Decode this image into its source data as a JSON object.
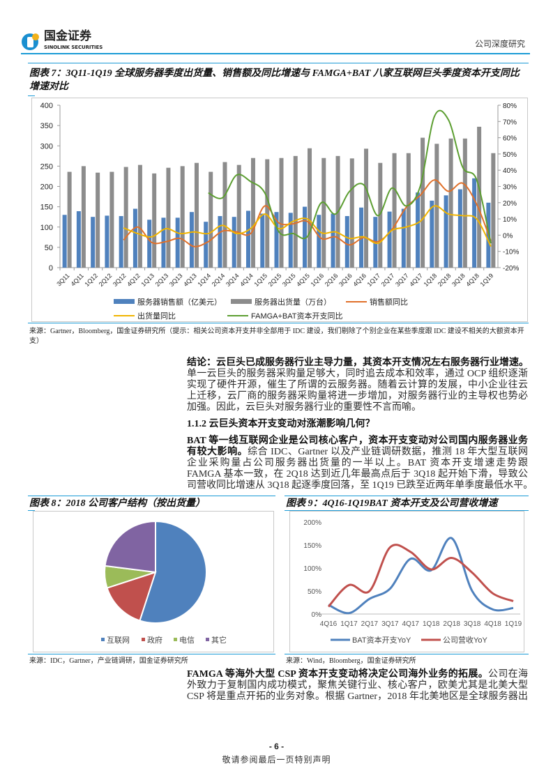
{
  "header": {
    "logo_cn": "国金证券",
    "logo_en": "SINOLINK SECURITIES",
    "report_type": "公司深度研究"
  },
  "colors": {
    "accent": "#1a9ad6",
    "blue": "#4f81bd",
    "gray": "#8c8c8c",
    "orange": "#e0702a",
    "yellow": "#f0b400",
    "green": "#5c9e31",
    "red": "#c0504d",
    "pie_green": "#9bbb59",
    "purple": "#8064a2"
  },
  "fig7": {
    "title": "图表 7：3Q11-1Q19 全球服务器季度出货量、销售额及同比增速与 FAMGA+BAT 八家互联网巨头季度资本开支同比增速对比",
    "source": "来源：Gartner，Bloomberg，国金证券研究所（提示：相关公司资本开支并非全部用于 IDC 建设，我们剔除了个别企业在某些季度跟 IDC 建设不相关的大额资本开支）"
  },
  "fig8": {
    "title": "图表 8：2018 公司客户结构（按出货量）",
    "source": "来源：IDC，Gartner，产业链调研，国金证券研究所"
  },
  "fig9": {
    "title": "图表 9：4Q16-1Q19BAT 资本开支及公司营收增速",
    "source": "来源：Wind，Bloomberg，国金证券研究所"
  },
  "chart_data": [
    {
      "type": "bar",
      "categories": [
        "3Q11",
        "4Q11",
        "1Q12",
        "2Q12",
        "3Q12",
        "4Q12",
        "1Q13",
        "2Q13",
        "3Q13",
        "4Q13",
        "1Q14",
        "2Q14",
        "3Q14",
        "4Q14",
        "1Q15",
        "2Q15",
        "3Q15",
        "4Q15",
        "1Q16",
        "2Q16",
        "3Q16",
        "4Q16",
        "1Q17",
        "2Q17",
        "3Q17",
        "4Q17",
        "1Q18",
        "2Q18",
        "3Q18",
        "4Q18",
        "1Q19"
      ],
      "ylim": [
        0,
        400
      ],
      "yticks": [
        "0",
        "50",
        "100",
        "150",
        "200",
        "250",
        "300",
        "350",
        "400"
      ],
      "y2lim": [
        -20,
        80
      ],
      "y2ticks": [
        "-20%",
        "-10%",
        "0%",
        "10%",
        "20%",
        "30%",
        "40%",
        "50%",
        "60%",
        "70%",
        "80%"
      ],
      "legend_position": "bottom",
      "series": [
        {
          "name": "服务器销售额（亿美元）",
          "kind": "bar",
          "axis": "left",
          "values": [
            130,
            139,
            125,
            128,
            127,
            145,
            118,
            123,
            123,
            137,
            113,
            127,
            125,
            140,
            133,
            137,
            135,
            150,
            130,
            133,
            127,
            148,
            125,
            138,
            145,
            185,
            165,
            178,
            193,
            220,
            160
          ]
        },
        {
          "name": "服务器出货量（万台）",
          "kind": "bar",
          "axis": "left",
          "values": [
            236,
            250,
            234,
            236,
            248,
            253,
            232,
            246,
            250,
            258,
            236,
            260,
            253,
            270,
            267,
            270,
            275,
            294,
            270,
            275,
            269,
            293,
            258,
            282,
            282,
            320,
            305,
            318,
            318,
            347,
            282
          ]
        },
        {
          "name": "销售额同比",
          "kind": "line",
          "axis": "right",
          "unit": "%",
          "values": [
            null,
            null,
            null,
            null,
            -3,
            5,
            -4.5,
            -4,
            -2,
            -7,
            -4,
            2.5,
            2,
            1,
            18,
            7.5,
            7,
            8.5,
            -2,
            -1,
            -6,
            -1.5,
            -4,
            3.5,
            17,
            24.5,
            34,
            27,
            32,
            19,
            -3.5
          ]
        },
        {
          "name": "出货量同比",
          "kind": "line",
          "axis": "right",
          "unit": "%",
          "values": [
            null,
            null,
            null,
            null,
            4.5,
            1,
            -1,
            4,
            1,
            2,
            1,
            6,
            1,
            4,
            13,
            4,
            8.5,
            10,
            1.5,
            2,
            -2,
            -1,
            -5,
            3,
            5,
            8.5,
            18,
            13,
            12,
            10,
            -7
          ]
        },
        {
          "name": "FAMGA+BAT资本开支同比",
          "kind": "line",
          "axis": "right",
          "unit": "%",
          "values": [
            null,
            null,
            null,
            null,
            null,
            null,
            null,
            null,
            null,
            null,
            26,
            23,
            37,
            33,
            26,
            2,
            1,
            -1,
            20,
            13,
            27,
            31,
            12,
            29,
            18,
            30,
            73,
            71,
            42,
            34,
            -5
          ]
        }
      ]
    },
    {
      "type": "pie",
      "unit": "%",
      "labels": [
        "互联网",
        "政府",
        "电信",
        "其它"
      ],
      "values": [
        55,
        15,
        7,
        23
      ],
      "legend_position": "bottom"
    },
    {
      "type": "line",
      "categories": [
        "4Q16",
        "1Q17",
        "2Q17",
        "3Q17",
        "4Q17",
        "1Q18",
        "2Q18",
        "3Q18",
        "4Q18",
        "1Q19"
      ],
      "ylim": [
        0,
        200
      ],
      "yticks": [
        "0%",
        "50%",
        "100%",
        "150%",
        "200%"
      ],
      "legend_position": "bottom",
      "series": [
        {
          "name": "BAT资本开支YoY",
          "unit": "%",
          "values": [
            20,
            2,
            33,
            55,
            120,
            95,
            165,
            50,
            10,
            13
          ]
        },
        {
          "name": "公司营收YoY",
          "unit": "%",
          "values": [
            16,
            63,
            50,
            145,
            135,
            97,
            122,
            90,
            45,
            28
          ]
        }
      ]
    }
  ],
  "body": {
    "p1": [
      {
        "bold": "结论：云巨头已成服务器行业主导力量，其资本开支情况左右服务器行业增速。",
        "text": ""
      },
      {
        "bold": "",
        "text": "单一云巨头的服务器采购量足够大，同时追去成本和效率，通过 OCP 组织逐渐"
      },
      {
        "bold": "",
        "text": "实现了硬件开源，催生了所谓的云服务器。随着云计算的发展，中小企业往云"
      },
      {
        "bold": "",
        "text": "上迁移，云厂商的服务器采购量将进一步增加，对服务器行业的主导权也势必"
      },
      {
        "bold": "",
        "text": "加强。因此，云巨头对服务器行业的重要性不言而喻。"
      }
    ],
    "heading": "1.1.2 云巨头资本开支变动对涨潮影响几何？",
    "p2": [
      {
        "bold": "BAT 等一线互联网企业是公司核心客户，资本开支变动对公司国内服务器业务",
        "text": ""
      },
      {
        "bold": "有较大影响。",
        "text": "综合 IDC、Gartner 以及产业链调研数据，推测 18 年大型互联网"
      },
      {
        "bold": "",
        "text": "企业采购量占公司服务器出货量的一半以上。BAT 资本开支增速走势跟"
      },
      {
        "bold": "",
        "text": "FAMGA 基本一致，在 2Q18 达到近几年最高点后于 3Q18 起开始下滑，导致公"
      },
      {
        "bold": "",
        "text": "司营收同比增速从 3Q18 起逐季度回落，至 1Q19 已跌至近两年单季度最低水平。"
      }
    ],
    "p3": [
      {
        "bold": "FAMGA 等海外大型 CSP 资本开支变动将决定公司海外业务的拓展。",
        "text": "公司在海"
      },
      {
        "bold": "",
        "text": "外致力于复制国内成功模式，聚焦关键行业、核心客户，欧美尤其是北美大型"
      },
      {
        "bold": "",
        "text": "CSP 将是重点开拓的业务对象。根据 Gartner，2018 年北美地区是全球服务器出"
      }
    ]
  },
  "footer": {
    "page_number": "- 6 -",
    "disclaimer": "敬请参阅最后一页特别声明"
  }
}
